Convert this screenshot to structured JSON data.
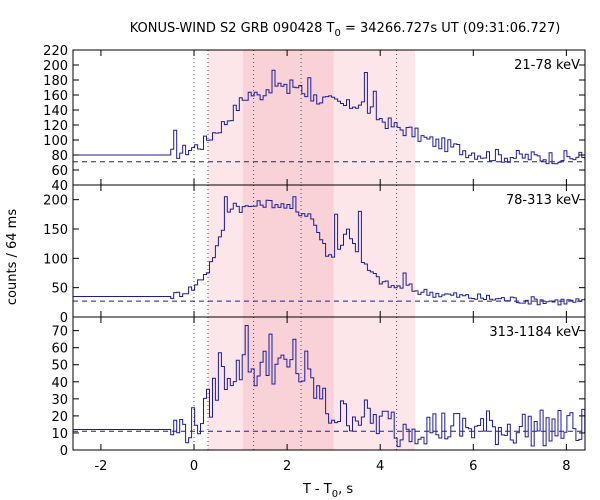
{
  "chart_data": {
    "type": "line",
    "title": "KONUS-WIND S2 GRB 090428 T",
    "title_sub": "0",
    "title_rest": " = 34266.727s UT (09:31:06.727)",
    "xlabel": "T - T",
    "xlabel_sub": "0",
    "xlabel_rest": ", s",
    "ylabel": "counts / 64 ms",
    "xlim": [
      -2.6,
      8.4
    ],
    "x_ticks": [
      -2,
      0,
      2,
      4,
      6,
      8
    ],
    "x_tick_labels": [
      "-2",
      "0",
      "2",
      "4",
      "6",
      "8"
    ],
    "vertical_dotted_lines": [
      0.0,
      0.3,
      1.28,
      2.3,
      4.35
    ],
    "shaded_regions": [
      {
        "from": 0.3,
        "to": 4.75,
        "color": "#fde6ea"
      },
      {
        "from": 1.05,
        "to": 3.0,
        "color": "#f9d2d8"
      }
    ],
    "line_color": "#1c1c9c",
    "panels": [
      {
        "label": "21-78 keV",
        "ylim": [
          40,
          220
        ],
        "y_ticks": [
          40,
          60,
          80,
          100,
          120,
          140,
          160,
          180,
          200,
          220
        ],
        "y_tick_labels": [
          "40",
          "60",
          "80",
          "100",
          "120",
          "140",
          "160",
          "180",
          "200",
          "220"
        ],
        "background_level": 71,
        "pre_trigger_level": 80,
        "keypoints": [
          [
            -0.5,
            80
          ],
          [
            -0.1,
            88
          ],
          [
            0.2,
            95
          ],
          [
            0.4,
            108
          ],
          [
            0.7,
            125
          ],
          [
            1.0,
            150
          ],
          [
            1.2,
            163
          ],
          [
            1.4,
            158
          ],
          [
            1.6,
            170
          ],
          [
            1.8,
            175
          ],
          [
            2.0,
            165
          ],
          [
            2.2,
            173
          ],
          [
            2.4,
            160
          ],
          [
            2.7,
            155
          ],
          [
            3.0,
            150
          ],
          [
            3.3,
            145
          ],
          [
            3.6,
            150
          ],
          [
            3.9,
            132
          ],
          [
            4.3,
            118
          ],
          [
            4.7,
            110
          ],
          [
            5.0,
            100
          ],
          [
            5.3,
            95
          ],
          [
            5.6,
            90
          ],
          [
            5.9,
            85
          ],
          [
            6.3,
            80
          ],
          [
            6.8,
            78
          ],
          [
            7.5,
            77
          ],
          [
            8.4,
            77
          ]
        ],
        "spikes": [
          [
            -0.45,
            113
          ],
          [
            1.7,
            193
          ],
          [
            2.05,
            180
          ],
          [
            2.45,
            183
          ],
          [
            3.65,
            190
          ],
          [
            3.85,
            165
          ]
        ],
        "noise": 9
      },
      {
        "label": "78-313 keV",
        "ylim": [
          0,
          225
        ],
        "y_ticks": [
          0,
          50,
          100,
          150,
          200
        ],
        "y_tick_labels": [
          "0",
          "50",
          "100",
          "150",
          "200"
        ],
        "background_level": 27,
        "pre_trigger_level": 35,
        "keypoints": [
          [
            -0.4,
            37
          ],
          [
            0.0,
            50
          ],
          [
            0.3,
            80
          ],
          [
            0.55,
            130
          ],
          [
            0.7,
            175
          ],
          [
            0.85,
            195
          ],
          [
            1.0,
            185
          ],
          [
            1.3,
            190
          ],
          [
            1.6,
            195
          ],
          [
            1.9,
            190
          ],
          [
            2.2,
            180
          ],
          [
            2.5,
            175
          ],
          [
            2.7,
            140
          ],
          [
            2.85,
            110
          ],
          [
            3.0,
            100
          ],
          [
            3.15,
            120
          ],
          [
            3.3,
            150
          ],
          [
            3.45,
            125
          ],
          [
            3.6,
            95
          ],
          [
            3.75,
            80
          ],
          [
            3.95,
            65
          ],
          [
            4.15,
            55
          ],
          [
            4.35,
            50
          ],
          [
            4.55,
            55
          ],
          [
            4.75,
            45
          ],
          [
            5.0,
            42
          ],
          [
            5.4,
            38
          ],
          [
            5.8,
            35
          ],
          [
            6.3,
            32
          ],
          [
            7.0,
            29
          ],
          [
            7.8,
            27
          ],
          [
            8.4,
            26
          ]
        ],
        "spikes": [
          [
            0.65,
            205
          ],
          [
            2.15,
            205
          ],
          [
            3.0,
            175
          ],
          [
            3.55,
            180
          ],
          [
            4.5,
            75
          ]
        ],
        "noise": 7
      },
      {
        "label": "313-1184 keV",
        "ylim": [
          0,
          78
        ],
        "y_ticks": [
          0,
          10,
          20,
          30,
          40,
          50,
          60,
          70
        ],
        "y_tick_labels": [
          "0",
          "10",
          "20",
          "30",
          "40",
          "50",
          "60",
          "70"
        ],
        "background_level": 11,
        "pre_trigger_level": 12,
        "keypoints": [
          [
            -0.4,
            12
          ],
          [
            0.0,
            15
          ],
          [
            0.25,
            22
          ],
          [
            0.45,
            35
          ],
          [
            0.7,
            45
          ],
          [
            1.0,
            48
          ],
          [
            1.3,
            46
          ],
          [
            1.6,
            50
          ],
          [
            1.9,
            48
          ],
          [
            2.2,
            45
          ],
          [
            2.5,
            40
          ],
          [
            2.7,
            32
          ],
          [
            2.9,
            22
          ],
          [
            3.2,
            20
          ],
          [
            3.5,
            22
          ],
          [
            3.8,
            18
          ],
          [
            4.1,
            16
          ],
          [
            4.5,
            15
          ],
          [
            5.0,
            14
          ],
          [
            5.5,
            13
          ],
          [
            6.5,
            13
          ],
          [
            7.5,
            13
          ],
          [
            8.4,
            13
          ]
        ],
        "spikes": [
          [
            0.55,
            57
          ],
          [
            1.1,
            73
          ],
          [
            1.6,
            68
          ],
          [
            2.1,
            65
          ],
          [
            2.35,
            58
          ],
          [
            4.35,
            2
          ]
        ],
        "noise": 11
      }
    ]
  }
}
